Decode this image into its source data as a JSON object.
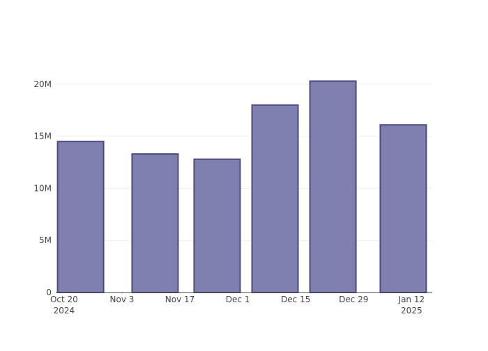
{
  "chart_data": {
    "type": "bar",
    "x": [
      "2024-10-24",
      "2024-11-11",
      "2024-11-26",
      "2024-12-10",
      "2024-12-24",
      "2025-01-10"
    ],
    "values": [
      14500000,
      13300000,
      12800000,
      18000000,
      20300000,
      16100000
    ],
    "color": "#8080b0",
    "edge_color": "#4b4a80",
    "xlim": [
      "2024-10-18",
      "2025-01-17"
    ],
    "xticks": [
      {
        "value": "2024-10-20",
        "label": [
          "Oct 20",
          "2024"
        ]
      },
      {
        "value": "2024-11-03",
        "label": [
          "Nov 3"
        ]
      },
      {
        "value": "2024-11-17",
        "label": [
          "Nov 17"
        ]
      },
      {
        "value": "2024-12-01",
        "label": [
          "Dec 1"
        ]
      },
      {
        "value": "2024-12-15",
        "label": [
          "Dec 15"
        ]
      },
      {
        "value": "2024-12-29",
        "label": [
          "Dec 29"
        ]
      },
      {
        "value": "2025-01-12",
        "label": [
          "Jan 12",
          "2025"
        ]
      }
    ],
    "ylim": [
      0,
      21400000
    ],
    "yticks": [
      0,
      {
        "value": 5000000,
        "label": "5M"
      },
      {
        "value": 10000000,
        "label": "10M"
      },
      {
        "value": 15000000,
        "label": "15M"
      },
      {
        "value": 20000000,
        "label": "20M"
      }
    ],
    "grid": true
  }
}
